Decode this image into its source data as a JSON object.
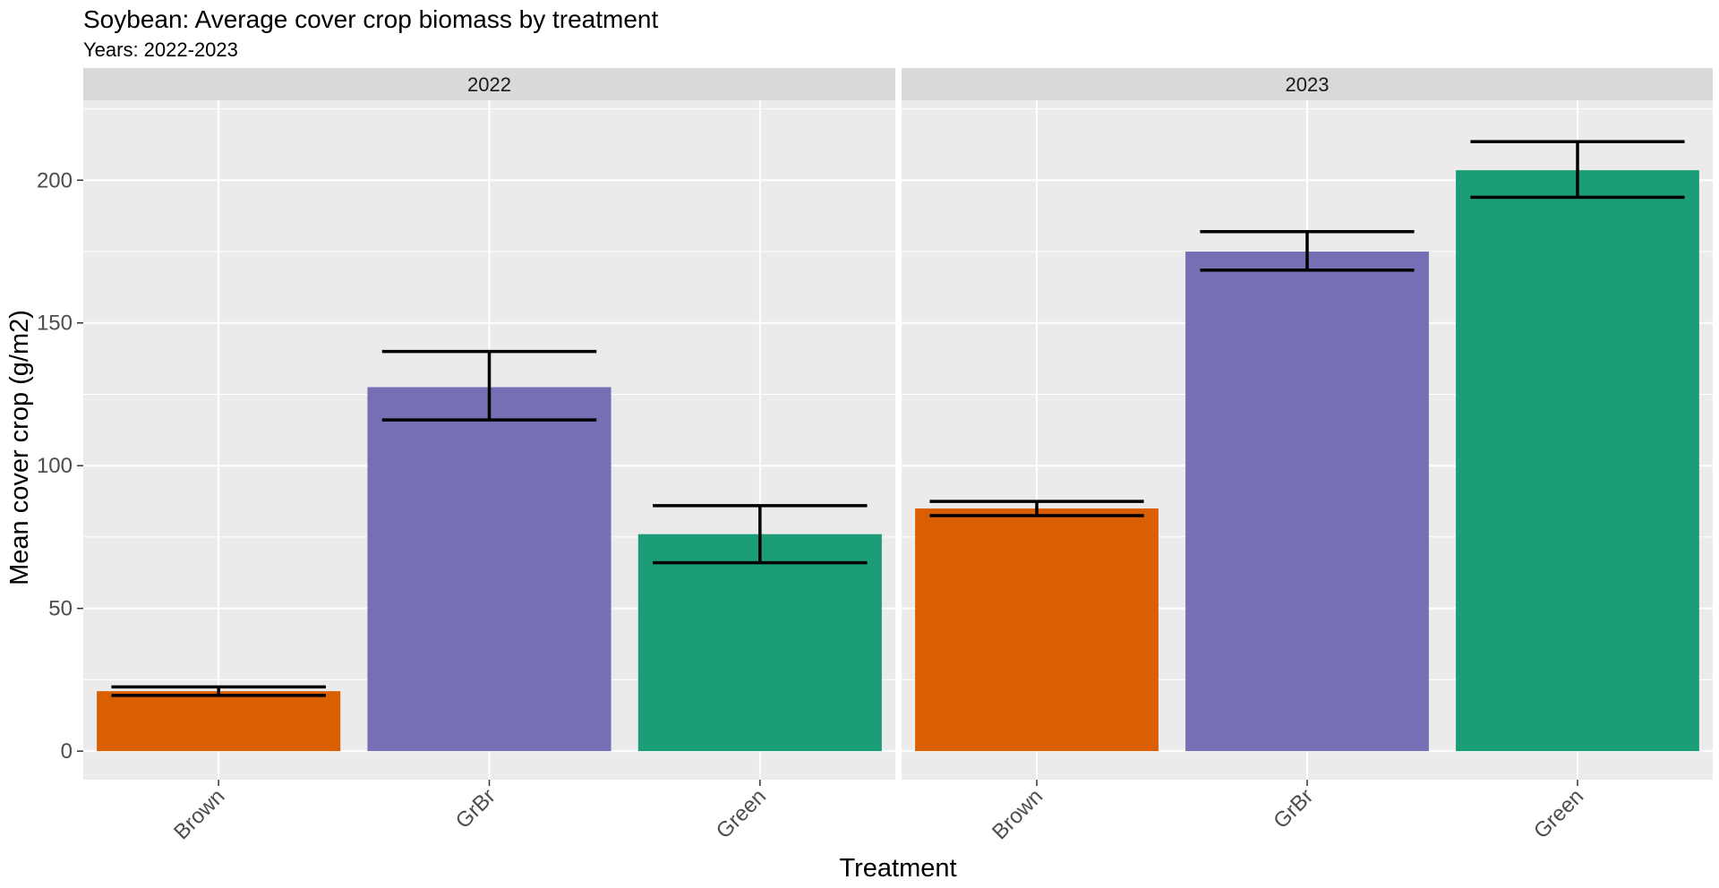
{
  "chart_data": {
    "type": "bar",
    "title": "Soybean: Average cover crop biomass by treatment",
    "subtitle": "Years: 2022-2023",
    "xlabel": "Treatment",
    "ylabel": "Mean cover crop (g/m2)",
    "ylim": [
      -10,
      228
    ],
    "yticks": [
      0,
      50,
      100,
      150,
      200
    ],
    "ytick_labels": [
      "0",
      "50",
      "100",
      "150",
      "200"
    ],
    "categories": [
      "Brown",
      "GrBr",
      "Green"
    ],
    "grid": true,
    "legend": "none",
    "colors": {
      "Brown": "#D95F02",
      "GrBr": "#7570B3",
      "Green": "#1B9E77"
    },
    "facets": [
      {
        "label": "2022",
        "bars": [
          {
            "category": "Brown",
            "value": 21,
            "err_low": 19.5,
            "err_high": 22.5
          },
          {
            "category": "GrBr",
            "value": 127.5,
            "err_low": 116,
            "err_high": 140
          },
          {
            "category": "Green",
            "value": 76,
            "err_low": 66,
            "err_high": 86
          }
        ]
      },
      {
        "label": "2023",
        "bars": [
          {
            "category": "Brown",
            "value": 85,
            "err_low": 82.5,
            "err_high": 87.5
          },
          {
            "category": "GrBr",
            "value": 175,
            "err_low": 168.5,
            "err_high": 182
          },
          {
            "category": "Green",
            "value": 203.5,
            "err_low": 194,
            "err_high": 213.5
          }
        ]
      }
    ]
  }
}
